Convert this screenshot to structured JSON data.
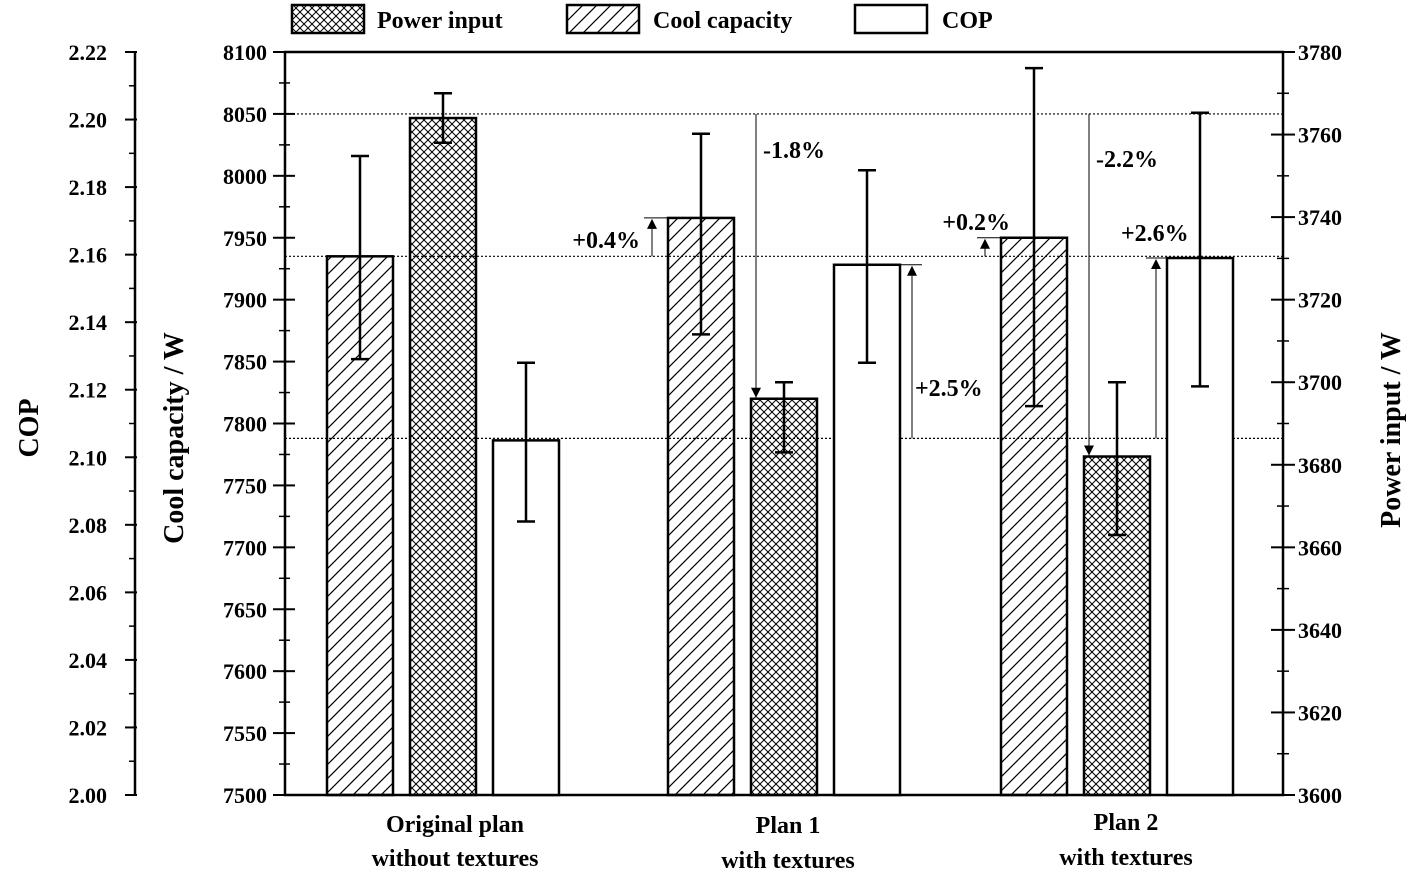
{
  "chart_data": {
    "type": "bar",
    "categories": [
      [
        "Original plan",
        "without textures"
      ],
      [
        "Plan 1",
        "with textures"
      ],
      [
        "Plan 2",
        "with textures"
      ]
    ],
    "series": [
      {
        "key": "cool",
        "name": "Cool capacity",
        "axis": "cool",
        "pattern": "hatch",
        "values": [
          7935,
          7966,
          7950
        ],
        "err_low": [
          7852,
          7872,
          7814
        ],
        "err_high": [
          8016,
          8034,
          8087
        ]
      },
      {
        "key": "power",
        "name": "Power input",
        "axis": "power",
        "pattern": "crosshatch",
        "values": [
          3764,
          3696,
          3682
        ],
        "err_low": [
          3758,
          3683,
          3663
        ],
        "err_high": [
          3770,
          3700,
          3700
        ]
      },
      {
        "key": "cop",
        "name": "COP",
        "axis": "cop",
        "pattern": "none",
        "values": [
          2.105,
          2.157,
          2.159
        ],
        "err_low": [
          2.081,
          2.128,
          2.121
        ],
        "err_high": [
          2.128,
          2.185,
          2.202
        ]
      }
    ],
    "legend_order": [
      "Power input",
      "Cool capacity",
      "COP"
    ],
    "axes": {
      "cop": {
        "title": "COP",
        "ylim": [
          2.0,
          2.22
        ],
        "ticks": [
          "2.00",
          "2.02",
          "2.04",
          "2.06",
          "2.08",
          "2.10",
          "2.12",
          "2.14",
          "2.16",
          "2.18",
          "2.20",
          "2.22"
        ]
      },
      "cool": {
        "title": "Cool capacity  /  W",
        "ylim": [
          7500,
          8100
        ],
        "ticks": [
          "7500",
          "7550",
          "7600",
          "7650",
          "7700",
          "7750",
          "7800",
          "7850",
          "7900",
          "7950",
          "8000",
          "8050",
          "8100"
        ]
      },
      "power": {
        "title": "Power input  /  W",
        "ylim": [
          3600,
          3780
        ],
        "ticks": [
          "3600",
          "3620",
          "3640",
          "3660",
          "3680",
          "3700",
          "3720",
          "3740",
          "3760",
          "3780"
        ]
      }
    },
    "reference_lines": [
      {
        "axis": "cool",
        "value": 8050
      },
      {
        "axis": "cool",
        "value": 7935
      },
      {
        "axis": "cool",
        "value": 7788
      }
    ],
    "annotations": [
      {
        "text": "+0.4%",
        "category": 1,
        "series": "cool"
      },
      {
        "text": "-1.8%",
        "category": 1,
        "series": "power"
      },
      {
        "text": "+2.5%",
        "category": 1,
        "series": "cop"
      },
      {
        "text": "+0.2%",
        "category": 2,
        "series": "cool"
      },
      {
        "text": "-2.2%",
        "category": 2,
        "series": "power"
      },
      {
        "text": "+2.6%",
        "category": 2,
        "series": "cop"
      }
    ]
  }
}
